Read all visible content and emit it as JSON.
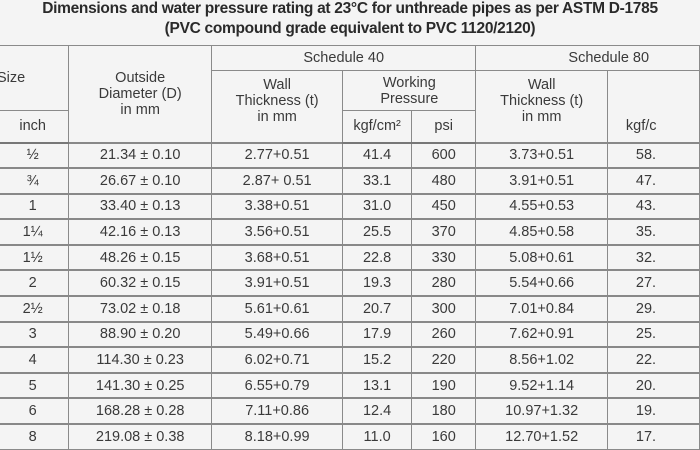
{
  "title_line1": "Dimensions and water pressure rating at 23°C for unthreade pipes as per ASTM D-1785",
  "title_line2": "(PVC compound grade equivalent to PVC 1120/2120)",
  "header": {
    "size": "Size",
    "inch": "inch",
    "outside_diameter": "Outside Diameter (D) in mm",
    "schedule_40": "Schedule 40",
    "schedule_80": "Schedule 80",
    "wall_thickness_40": "Wall Thickness (t) in mm",
    "working_pressure_40": "Working Pressure",
    "kgf_40": "kgf/cm²",
    "psi_40": "psi",
    "wall_thickness_80": "Wall Thickness (t) in mm",
    "kgf_80": "kgf/c"
  },
  "rows": [
    {
      "size": "½",
      "od": "21.34 ± 0.10",
      "wt40": "2.77+0.51",
      "kgf40": "41.4",
      "psi40": "600",
      "wt80": "3.73+0.51",
      "kgf80": "58."
    },
    {
      "size": "¾",
      "od": "26.67 ± 0.10",
      "wt40": "2.87+ 0.51",
      "kgf40": "33.1",
      "psi40": "480",
      "wt80": "3.91+0.51",
      "kgf80": "47."
    },
    {
      "size": "1",
      "od": "33.40 ± 0.13",
      "wt40": "3.38+0.51",
      "kgf40": "31.0",
      "psi40": "450",
      "wt80": "4.55+0.53",
      "kgf80": "43."
    },
    {
      "size": "1¼",
      "od": "42.16 ± 0.13",
      "wt40": "3.56+0.51",
      "kgf40": "25.5",
      "psi40": "370",
      "wt80": "4.85+0.58",
      "kgf80": "35."
    },
    {
      "size": "1½",
      "od": "48.26 ± 0.15",
      "wt40": "3.68+0.51",
      "kgf40": "22.8",
      "psi40": "330",
      "wt80": "5.08+0.61",
      "kgf80": "32."
    },
    {
      "size": "2",
      "od": "60.32 ± 0.15",
      "wt40": "3.91+0.51",
      "kgf40": "19.3",
      "psi40": "280",
      "wt80": "5.54+0.66",
      "kgf80": "27."
    },
    {
      "size": "2½",
      "od": "73.02 ± 0.18",
      "wt40": "5.61+0.61",
      "kgf40": "20.7",
      "psi40": "300",
      "wt80": "7.01+0.84",
      "kgf80": "29."
    },
    {
      "size": "3",
      "od": "88.90 ± 0.20",
      "wt40": "5.49+0.66",
      "kgf40": "17.9",
      "psi40": "260",
      "wt80": "7.62+0.91",
      "kgf80": "25."
    },
    {
      "size": "4",
      "od": "114.30 ± 0.23",
      "wt40": "6.02+0.71",
      "kgf40": "15.2",
      "psi40": "220",
      "wt80": "8.56+1.02",
      "kgf80": "22."
    },
    {
      "size": "5",
      "od": "141.30 ± 0.25",
      "wt40": "6.55+0.79",
      "kgf40": "13.1",
      "psi40": "190",
      "wt80": "9.52+1.14",
      "kgf80": "20."
    },
    {
      "size": "6",
      "od": "168.28 ± 0.28",
      "wt40": "7.11+0.86",
      "kgf40": "12.4",
      "psi40": "180",
      "wt80": "10.97+1.32",
      "kgf80": "19."
    },
    {
      "size": "8",
      "od": "219.08 ± 0.38",
      "wt40": "8.18+0.99",
      "kgf40": "11.0",
      "psi40": "160",
      "wt80": "12.70+1.52",
      "kgf80": "17."
    }
  ]
}
